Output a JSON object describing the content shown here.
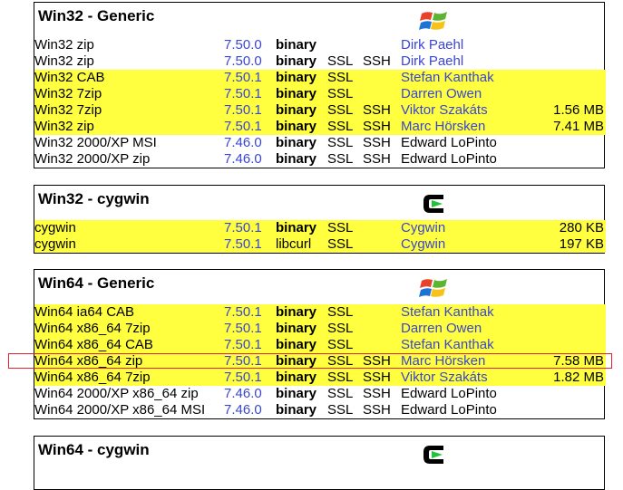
{
  "sections": [
    {
      "title": "Win32 - Generic",
      "logo": "windows-logo-icon",
      "rows": [
        {
          "name": "Win32 zip",
          "version": "7.50.0",
          "type": "binary",
          "ssl": "",
          "ssh": "",
          "by": "Dirk Paehl",
          "size": "",
          "highlight": false,
          "link": true
        },
        {
          "name": "Win32 zip",
          "version": "7.50.0",
          "type": "binary",
          "ssl": "SSL",
          "ssh": "SSH",
          "by": "Dirk Paehl",
          "size": "",
          "highlight": false,
          "link": true
        },
        {
          "name": "Win32 CAB",
          "version": "7.50.1",
          "type": "binary",
          "ssl": "SSL",
          "ssh": "",
          "by": "Stefan Kanthak",
          "size": "",
          "highlight": true,
          "link": true
        },
        {
          "name": "Win32 7zip",
          "version": "7.50.1",
          "type": "binary",
          "ssl": "SSL",
          "ssh": "",
          "by": "Darren Owen",
          "size": "",
          "highlight": true,
          "link": true
        },
        {
          "name": "Win32 7zip",
          "version": "7.50.1",
          "type": "binary",
          "ssl": "SSL",
          "ssh": "SSH",
          "by": "Viktor Szakáts",
          "size": "1.56 MB",
          "highlight": true,
          "link": true
        },
        {
          "name": "Win32 zip",
          "version": "7.50.1",
          "type": "binary",
          "ssl": "SSL",
          "ssh": "SSH",
          "by": "Marc Hörsken",
          "size": "7.41 MB",
          "highlight": true,
          "link": true
        },
        {
          "name": "Win32 2000/XP MSI",
          "version": "7.46.0",
          "type": "binary",
          "ssl": "SSL",
          "ssh": "SSH",
          "by": "Edward LoPinto",
          "size": "",
          "highlight": false,
          "link": false
        },
        {
          "name": "Win32 2000/XP zip",
          "version": "7.46.0",
          "type": "binary",
          "ssl": "SSL",
          "ssh": "SSH",
          "by": "Edward LoPinto",
          "size": "",
          "highlight": false,
          "link": false
        }
      ]
    },
    {
      "title": "Win32 - cygwin",
      "logo": "cygwin-logo-icon",
      "rows": [
        {
          "name": "cygwin",
          "version": "7.50.1",
          "type": "binary",
          "ssl": "SSL",
          "ssh": "",
          "by": "Cygwin",
          "size": "280 KB",
          "highlight": true,
          "link": true
        },
        {
          "name": "cygwin",
          "version": "7.50.1",
          "type": "libcurl",
          "ssl": "SSL",
          "ssh": "",
          "by": "Cygwin",
          "size": "197 KB",
          "highlight": true,
          "link": true
        }
      ]
    },
    {
      "title": "Win64 - Generic",
      "logo": "windows-logo-icon",
      "rows": [
        {
          "name": "Win64 ia64 CAB",
          "version": "7.50.1",
          "type": "binary",
          "ssl": "SSL",
          "ssh": "",
          "by": "Stefan Kanthak",
          "size": "",
          "highlight": true,
          "link": true
        },
        {
          "name": "Win64 x86_64 7zip",
          "version": "7.50.1",
          "type": "binary",
          "ssl": "SSL",
          "ssh": "",
          "by": "Darren Owen",
          "size": "",
          "highlight": true,
          "link": true
        },
        {
          "name": "Win64 x86_64 CAB",
          "version": "7.50.1",
          "type": "binary",
          "ssl": "SSL",
          "ssh": "",
          "by": "Stefan Kanthak",
          "size": "",
          "highlight": true,
          "link": true
        },
        {
          "name": "Win64 x86_64 zip",
          "version": "7.50.1",
          "type": "binary",
          "ssl": "SSL",
          "ssh": "SSH",
          "by": "Marc Hörsken",
          "size": "7.58 MB",
          "highlight": true,
          "link": true
        },
        {
          "name": "Win64 x86_64 7zip",
          "version": "7.50.1",
          "type": "binary",
          "ssl": "SSL",
          "ssh": "SSH",
          "by": "Viktor Szakáts",
          "size": "1.82 MB",
          "highlight": true,
          "link": true
        },
        {
          "name": "Win64 2000/XP x86_64 zip",
          "version": "7.46.0",
          "type": "binary",
          "ssl": "SSL",
          "ssh": "SSH",
          "by": "Edward LoPinto",
          "size": "",
          "highlight": false,
          "link": false
        },
        {
          "name": "Win64 2000/XP x86_64 MSI",
          "version": "7.46.0",
          "type": "binary",
          "ssl": "SSL",
          "ssh": "SSH",
          "by": "Edward LoPinto",
          "size": "",
          "highlight": false,
          "link": false
        }
      ]
    },
    {
      "title": "Win64 - cygwin",
      "logo": "cygwin-logo-icon",
      "rows": []
    }
  ],
  "colors": {
    "highlight": "#ffff3f",
    "link": "#3a46cf",
    "annotation": "#e8202a"
  }
}
